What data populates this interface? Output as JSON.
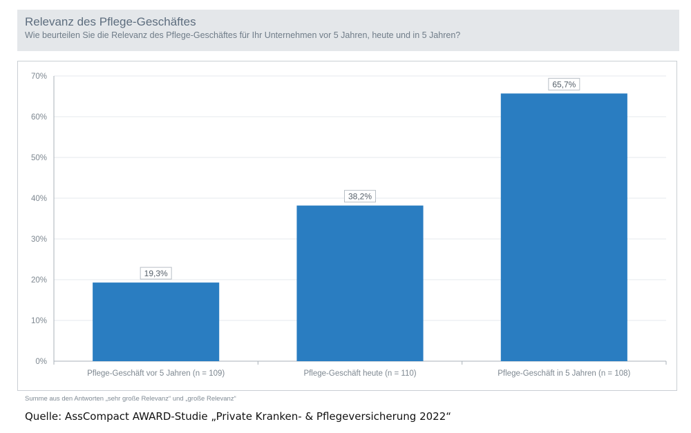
{
  "header": {
    "title": "Relevanz des Pflege-Geschäftes",
    "subtitle": "Wie beurteilen Sie die Relevanz des Pflege-Geschäftes für Ihr Unternehmen vor 5 Jahren, heute und in 5 Jahren?"
  },
  "footnote": "Summe aus den Antworten „sehr große Relevanz“ und „große Relevanz“",
  "source": "Quelle: AssCompact AWARD-Studie „Private Kranken- & Pflegeversicherung 2022“",
  "colors": {
    "bar": "#2a7dc1",
    "grid": "#e6e9ec",
    "axis": "#a9b1b8"
  },
  "chart_data": {
    "type": "bar",
    "title": "Relevanz des Pflege-Geschäftes",
    "xlabel": "",
    "ylabel": "",
    "categories": [
      "Pflege-Geschäft vor 5 Jahren (n = 109)",
      "Pflege-Geschäft heute (n = 110)",
      "Pflege-Geschäft in 5 Jahren (n = 108)"
    ],
    "values": [
      19.3,
      38.2,
      65.7
    ],
    "data_labels": [
      "19,3%",
      "38,2%",
      "65,7%"
    ],
    "ylim": [
      0,
      70
    ],
    "yticks": [
      0,
      10,
      20,
      30,
      40,
      50,
      60,
      70
    ],
    "ytick_labels": [
      "0%",
      "10%",
      "20%",
      "30%",
      "40%",
      "50%",
      "60%",
      "70%"
    ],
    "grid": true,
    "legend": "none"
  }
}
